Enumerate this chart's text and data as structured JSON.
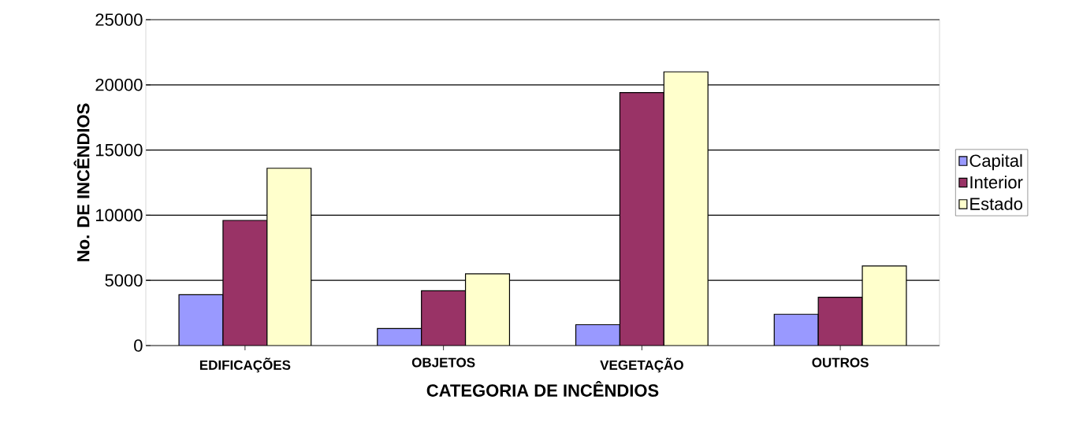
{
  "chart_data": {
    "type": "bar",
    "xlabel": "CATEGORIA DE INCÊNDIOS",
    "ylabel": "No. DE INCÊNDIOS",
    "categories": [
      "EDIFICAÇÕES",
      "OBJETOS",
      "VEGETAÇÃO",
      "OUTROS"
    ],
    "series": [
      {
        "name": "Capital",
        "color": "#9999ff",
        "values": [
          3900,
          1300,
          1600,
          2400
        ]
      },
      {
        "name": "Interior",
        "color": "#993366",
        "values": [
          9600,
          4200,
          19400,
          3700
        ]
      },
      {
        "name": "Estado",
        "color": "#ffffcc",
        "values": [
          13600,
          5500,
          21000,
          6100
        ]
      }
    ],
    "ylim": [
      0,
      25000
    ],
    "yticks": [
      0,
      5000,
      10000,
      15000,
      20000,
      25000
    ],
    "grid": "y",
    "legend": "right"
  }
}
